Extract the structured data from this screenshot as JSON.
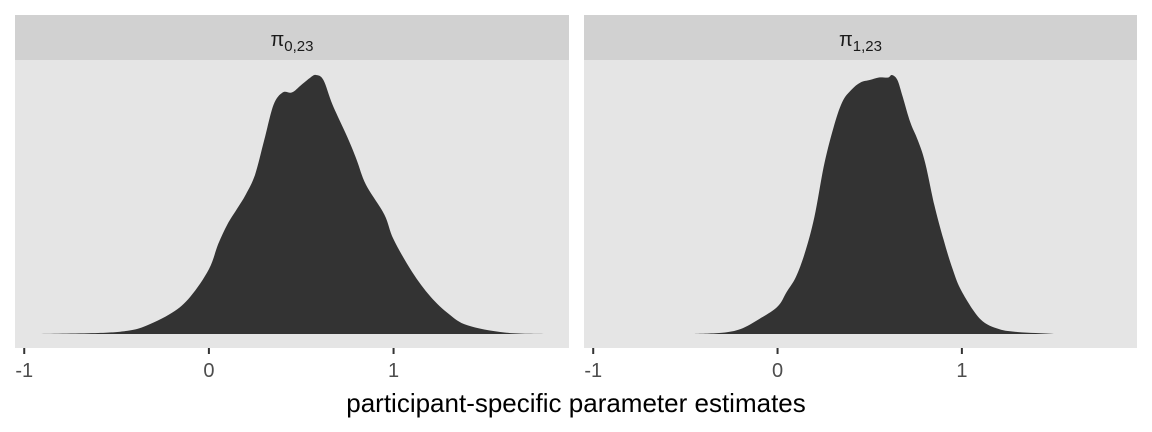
{
  "chart_data": {
    "type": "area",
    "xlabel": "participant-specific parameter estimates",
    "ylabel": "",
    "xlim": [
      -1.05,
      1.95
    ],
    "x_ticks": [
      "-1",
      "0",
      "1"
    ],
    "x_tick_values": [
      -1,
      0,
      1
    ],
    "y_axis_shown": false,
    "grid": false,
    "legend": "none",
    "fill_color": "#333333",
    "panel_color": "#e5e5e5",
    "strip_color": "#d1d1d1",
    "panels": [
      {
        "strip": {
          "base": "π",
          "sub": "0,23"
        },
        "series_type": "density",
        "x": [
          -0.92,
          -0.6,
          -0.45,
          -0.35,
          -0.2,
          -0.1,
          0.0,
          0.05,
          0.1,
          0.15,
          0.2,
          0.25,
          0.3,
          0.35,
          0.4,
          0.45,
          0.5,
          0.55,
          0.58,
          0.62,
          0.67,
          0.75,
          0.8,
          0.85,
          0.95,
          1.0,
          1.1,
          1.2,
          1.3,
          1.4,
          1.6,
          1.84
        ],
        "density": [
          0.0,
          0.004,
          0.012,
          0.03,
          0.085,
          0.15,
          0.26,
          0.36,
          0.44,
          0.5,
          0.56,
          0.64,
          0.78,
          0.92,
          0.97,
          0.97,
          1.0,
          1.03,
          1.04,
          1.02,
          0.92,
          0.79,
          0.7,
          0.6,
          0.48,
          0.38,
          0.25,
          0.15,
          0.08,
          0.035,
          0.006,
          0.0
        ]
      },
      {
        "strip": {
          "base": "π",
          "sub": "1,23"
        },
        "series_type": "density",
        "x": [
          -0.45,
          -0.3,
          -0.2,
          -0.1,
          0.0,
          0.05,
          0.1,
          0.15,
          0.2,
          0.25,
          0.3,
          0.35,
          0.4,
          0.45,
          0.5,
          0.55,
          0.6,
          0.62,
          0.65,
          0.68,
          0.72,
          0.76,
          0.8,
          0.85,
          0.9,
          0.95,
          1.0,
          1.1,
          1.2,
          1.3,
          1.4,
          1.5
        ],
        "density": [
          0.0,
          0.005,
          0.02,
          0.06,
          0.11,
          0.17,
          0.23,
          0.33,
          0.47,
          0.67,
          0.82,
          0.93,
          0.98,
          1.01,
          1.02,
          1.03,
          1.03,
          1.04,
          1.02,
          0.95,
          0.85,
          0.78,
          0.69,
          0.52,
          0.38,
          0.26,
          0.17,
          0.06,
          0.02,
          0.008,
          0.004,
          0.0
        ]
      }
    ]
  }
}
